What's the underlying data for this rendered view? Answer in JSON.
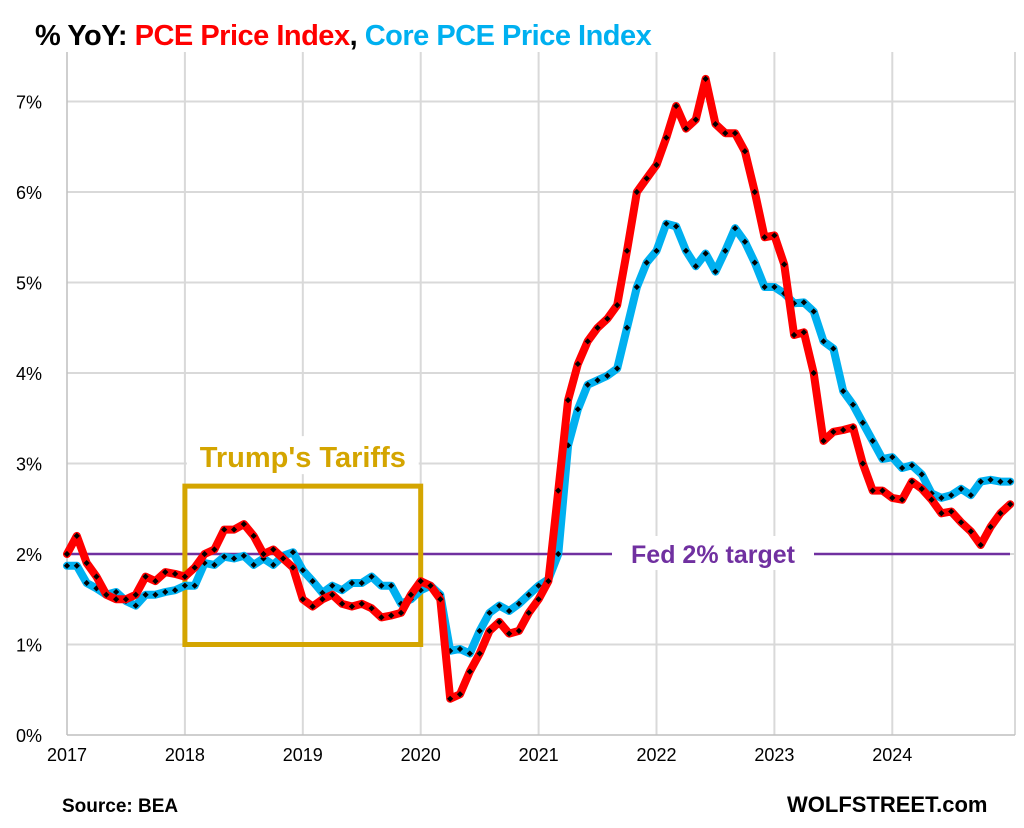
{
  "title": {
    "prefix": "% YoY: ",
    "series1": "PCE Price Index",
    "sep": ", ",
    "series2": "Core PCE Price Index"
  },
  "source": "Source: BEA",
  "brand": "WOLFSTREET.com",
  "colors": {
    "pce": "#ff0000",
    "core": "#00b0f0",
    "target": "#7030a0",
    "tariff": "#d4a500",
    "grid": "#d9d9d9"
  },
  "chart_data": {
    "type": "line",
    "title": "% YoY: PCE Price Index, Core PCE Price Index",
    "x_start": "2017-01",
    "frequency": "monthly",
    "xticks": [
      "2017",
      "2018",
      "2019",
      "2020",
      "2021",
      "2022",
      "2023",
      "2024"
    ],
    "yticks": [
      "0%",
      "1%",
      "2%",
      "3%",
      "4%",
      "5%",
      "6%",
      "7%"
    ],
    "ylim": [
      0,
      7.5
    ],
    "grid": true,
    "series": [
      {
        "name": "PCE Price Index",
        "color": "#ff0000",
        "values": [
          2.0,
          2.2,
          1.9,
          1.75,
          1.55,
          1.5,
          1.5,
          1.55,
          1.75,
          1.7,
          1.8,
          1.78,
          1.75,
          1.85,
          2.0,
          2.05,
          2.27,
          2.27,
          2.33,
          2.2,
          2.0,
          2.05,
          1.95,
          1.85,
          1.5,
          1.42,
          1.5,
          1.55,
          1.45,
          1.42,
          1.45,
          1.4,
          1.3,
          1.32,
          1.35,
          1.55,
          1.7,
          1.65,
          1.5,
          0.4,
          0.45,
          0.7,
          0.9,
          1.15,
          1.25,
          1.12,
          1.15,
          1.35,
          1.5,
          1.7,
          2.7,
          3.7,
          4.1,
          4.35,
          4.5,
          4.6,
          4.75,
          5.35,
          6.0,
          6.15,
          6.3,
          6.6,
          6.95,
          6.7,
          6.8,
          7.25,
          6.75,
          6.65,
          6.65,
          6.45,
          6.0,
          5.5,
          5.52,
          5.2,
          4.42,
          4.45,
          4.0,
          3.25,
          3.35,
          3.37,
          3.4,
          3.0,
          2.7,
          2.7,
          2.62,
          2.6,
          2.8,
          2.72,
          2.6,
          2.45,
          2.47,
          2.35,
          2.25,
          2.1,
          2.3,
          2.45,
          2.55
        ]
      },
      {
        "name": "Core PCE Price Index",
        "color": "#00b0f0",
        "values": [
          1.87,
          1.87,
          1.68,
          1.62,
          1.55,
          1.58,
          1.48,
          1.43,
          1.55,
          1.55,
          1.58,
          1.6,
          1.65,
          1.65,
          1.9,
          1.88,
          1.97,
          1.95,
          1.98,
          1.88,
          1.95,
          1.88,
          1.98,
          2.02,
          1.82,
          1.7,
          1.57,
          1.65,
          1.6,
          1.68,
          1.68,
          1.75,
          1.65,
          1.65,
          1.45,
          1.5,
          1.6,
          1.65,
          1.55,
          0.93,
          0.95,
          0.9,
          1.15,
          1.35,
          1.43,
          1.37,
          1.45,
          1.55,
          1.65,
          1.72,
          2.0,
          3.2,
          3.6,
          3.87,
          3.92,
          3.97,
          4.05,
          4.5,
          4.95,
          5.22,
          5.35,
          5.65,
          5.62,
          5.35,
          5.18,
          5.32,
          5.12,
          5.35,
          5.6,
          5.45,
          5.22,
          4.95,
          4.95,
          4.88,
          4.77,
          4.78,
          4.68,
          4.35,
          4.27,
          3.8,
          3.65,
          3.45,
          3.25,
          3.05,
          3.07,
          2.95,
          2.98,
          2.88,
          2.67,
          2.62,
          2.65,
          2.72,
          2.65,
          2.8,
          2.82,
          2.8,
          2.8
        ]
      }
    ],
    "reference_line": {
      "value": 2,
      "label": "Fed 2% target"
    },
    "annotation": {
      "label": "Trump's Tariffs",
      "x_from": "2018-01",
      "x_to": "2020-01",
      "y_from": 1.0,
      "y_to": 2.75
    }
  }
}
